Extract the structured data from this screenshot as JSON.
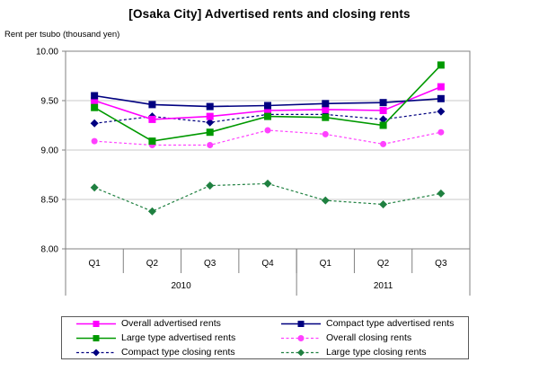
{
  "title": "[Osaka City] Advertised rents and closing rents",
  "y_axis_title": "Rent per tsubo (thousand yen)",
  "chart_data": {
    "type": "line",
    "categories": [
      "Q1",
      "Q2",
      "Q3",
      "Q4",
      "Q1",
      "Q2",
      "Q3"
    ],
    "year_groups": [
      {
        "label": "2010",
        "span": 4
      },
      {
        "label": "2011",
        "span": 3
      }
    ],
    "y_ticks": [
      "10.00",
      "9.50",
      "9.00",
      "8.50",
      "8.00"
    ],
    "ylim": [
      8.0,
      10.0
    ],
    "grid": true,
    "legend_position": "bottom",
    "axis_color": "#808080",
    "grid_color": "#c8c8c8",
    "series": [
      {
        "name": "Overall advertised rents",
        "color": "#ff00ff",
        "style": "solid",
        "marker": "square",
        "values": [
          9.5,
          9.31,
          9.34,
          9.4,
          9.41,
          9.4,
          9.64
        ]
      },
      {
        "name": "Compact type advertised rents",
        "color": "#000080",
        "style": "solid",
        "marker": "square",
        "values": [
          9.55,
          9.46,
          9.44,
          9.45,
          9.47,
          9.48,
          9.52
        ]
      },
      {
        "name": "Large type advertised rents",
        "color": "#009900",
        "style": "solid",
        "marker": "square",
        "values": [
          9.43,
          9.09,
          9.18,
          9.34,
          9.33,
          9.25,
          9.86
        ]
      },
      {
        "name": "Overall closing rents",
        "color": "#ff40ff",
        "style": "dashed",
        "marker": "circle",
        "values": [
          9.09,
          9.05,
          9.05,
          9.2,
          9.16,
          9.06,
          9.18
        ]
      },
      {
        "name": "Compact type closing rents",
        "color": "#000080",
        "style": "dashed",
        "marker": "diamond",
        "values": [
          9.27,
          9.34,
          9.28,
          9.36,
          9.36,
          9.31,
          9.39
        ]
      },
      {
        "name": "Large type closing rents",
        "color": "#1f8040",
        "style": "dashed",
        "marker": "diamond",
        "values": [
          8.62,
          8.38,
          8.64,
          8.66,
          8.49,
          8.45,
          8.56
        ]
      }
    ],
    "legend_display_order": [
      0,
      1,
      2,
      3,
      4,
      5
    ]
  }
}
